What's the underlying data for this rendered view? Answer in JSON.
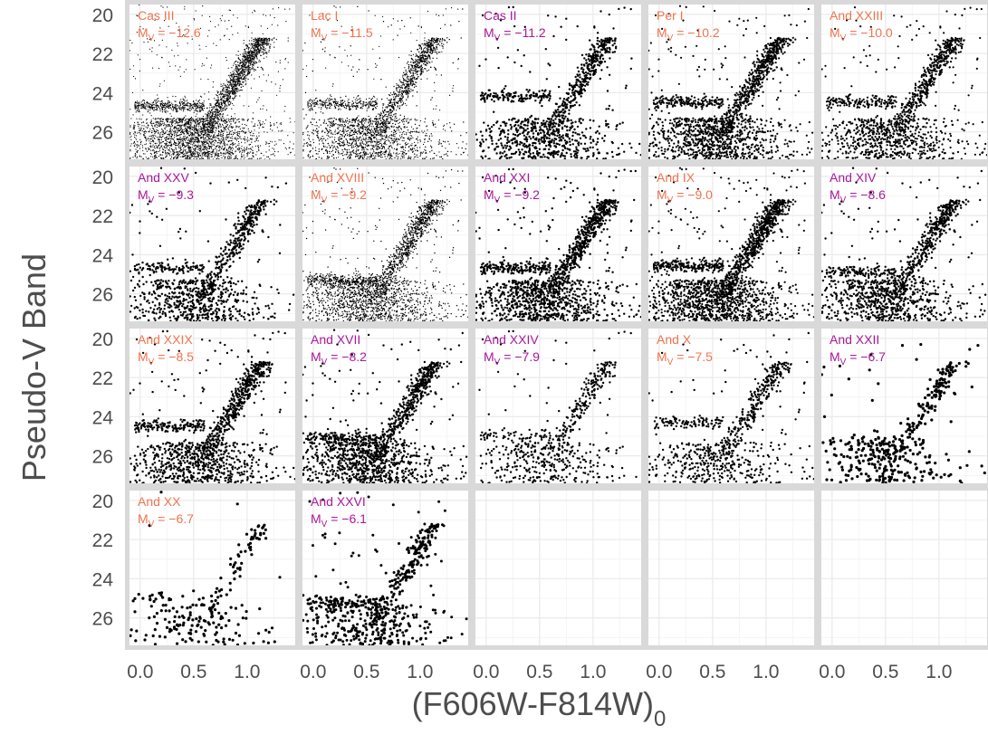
{
  "chart_data": {
    "type": "scatter",
    "layout": "facet-grid",
    "xlabel": "(F606W-F814W)",
    "xlabel_subscript": "0",
    "ylabel": "Pseudo-V Band",
    "xlim": [
      -0.1,
      1.45
    ],
    "ylim": [
      27.4,
      19.5
    ],
    "y_inverted": true,
    "x_ticks": [
      0.0,
      0.5,
      1.0
    ],
    "x_tick_labels": [
      "0.0",
      "0.5",
      "1.0"
    ],
    "y_ticks": [
      20,
      22,
      24,
      26
    ],
    "y_tick_labels": [
      "20",
      "22",
      "24",
      "26"
    ],
    "grid": true,
    "panel_background": "#ffffff",
    "grid_color": "#ebebeb",
    "point_color": "#000000",
    "label_colors": {
      "orange": "#f0744f",
      "magenta": "#a8199a"
    },
    "mv_prefix": "M",
    "mv_subscript": "V",
    "panels": [
      {
        "name": "Cas III",
        "mv": "−12.6",
        "color": "orange",
        "n": 4200,
        "size": 0.6,
        "hb": 24.7
      },
      {
        "name": "Lac I",
        "mv": "−11.5",
        "color": "orange",
        "n": 4000,
        "size": 0.6,
        "hb": 24.6
      },
      {
        "name": "Cas II",
        "mv": "−11.2",
        "color": "magenta",
        "n": 1200,
        "size": 1.2,
        "hb": 24.2
      },
      {
        "name": "Per I",
        "mv": "−10.2",
        "color": "orange",
        "n": 1800,
        "size": 1.1,
        "hb": 24.5
      },
      {
        "name": "And XXIII",
        "mv": "−10.0",
        "color": "orange",
        "n": 1400,
        "size": 1.1,
        "hb": 24.5
      },
      {
        "name": "And XXV",
        "mv": "−9.3",
        "color": "magenta",
        "n": 1100,
        "size": 1.2,
        "hb": 24.7
      },
      {
        "name": "And XVIII",
        "mv": "−9.2",
        "color": "orange",
        "n": 2600,
        "size": 0.7,
        "hb": 25.3
      },
      {
        "name": "And XXI",
        "mv": "−9.2",
        "color": "magenta",
        "n": 1700,
        "size": 1.2,
        "hb": 24.7
      },
      {
        "name": "And IX",
        "mv": "−9.0",
        "color": "orange",
        "n": 2200,
        "size": 1.1,
        "hb": 24.6
      },
      {
        "name": "And XIV",
        "mv": "−8.6",
        "color": "magenta",
        "n": 1300,
        "size": 1.2,
        "hb": 24.9
      },
      {
        "name": "And XXIX",
        "mv": "−8.5",
        "color": "orange",
        "n": 1400,
        "size": 1.2,
        "hb": 24.5
      },
      {
        "name": "And XVII",
        "mv": "−8.2",
        "color": "magenta",
        "n": 1500,
        "size": 1.2,
        "hb": 25.1
      },
      {
        "name": "And XXIV",
        "mv": "−7.9",
        "color": "magenta",
        "n": 650,
        "size": 1.2,
        "hb": 25.0
      },
      {
        "name": "And X",
        "mv": "−7.5",
        "color": "orange",
        "n": 800,
        "size": 1.2,
        "hb": 24.3
      },
      {
        "name": "And XXII",
        "mv": "−6.7",
        "color": "magenta",
        "n": 420,
        "size": 1.6,
        "hb": 25.2
      },
      {
        "name": "And XX",
        "mv": "−6.7",
        "color": "orange",
        "n": 230,
        "size": 1.6,
        "hb": 25.0
      },
      {
        "name": "And XXVI",
        "mv": "−6.1",
        "color": "magenta",
        "n": 650,
        "size": 1.5,
        "hb": 25.2
      }
    ]
  }
}
